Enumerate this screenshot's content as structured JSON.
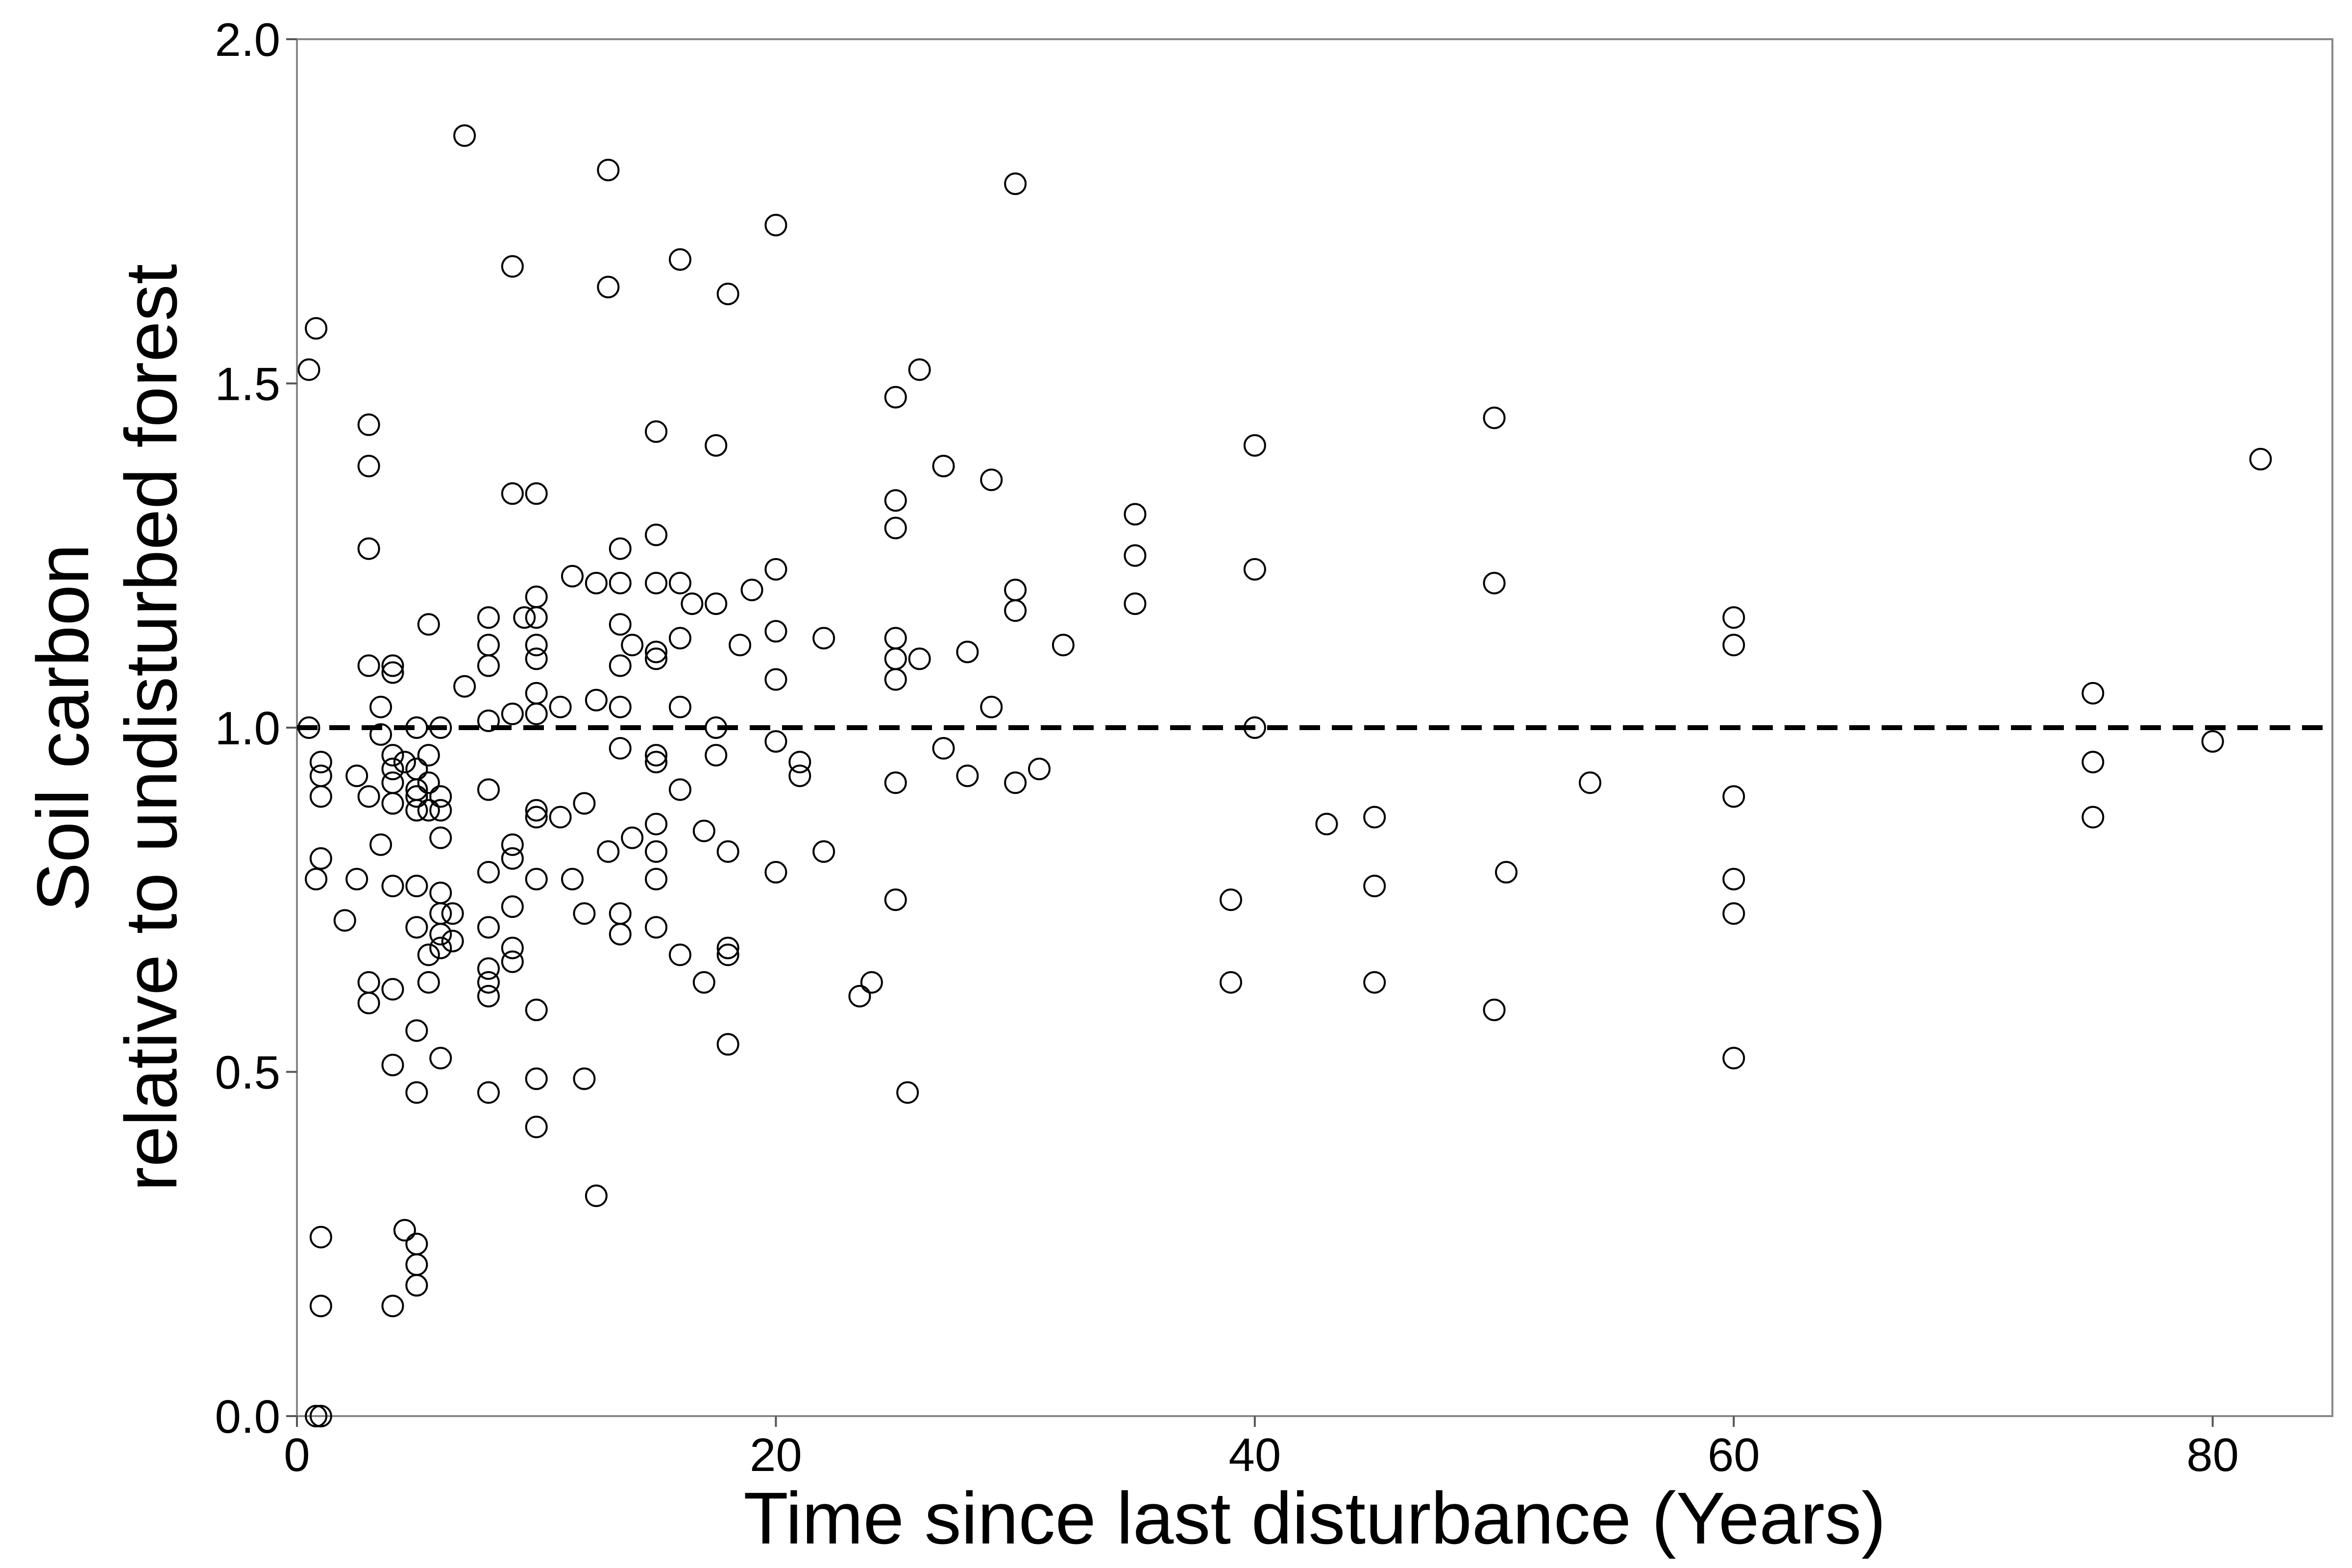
{
  "chart_data": {
    "type": "scatter",
    "title": "",
    "xlabel": "Time since last disturbance (Years)",
    "ylabel_lines": [
      "Soil carbon",
      "relative to undisturbed forest"
    ],
    "xlim": [
      0,
      85
    ],
    "ylim": [
      0,
      2.0
    ],
    "xticks": [
      0,
      20,
      40,
      60,
      80
    ],
    "xtick_labels": [
      "0",
      "20",
      "40",
      "60",
      "80"
    ],
    "yticks": [
      0.0,
      0.5,
      1.0,
      1.5,
      2.0
    ],
    "ytick_labels": [
      "0.0",
      "0.5",
      "1.0",
      "1.5",
      "2.0"
    ],
    "reference_line": {
      "y": 1.0,
      "style": "dashed"
    },
    "grid": false,
    "marker": "open-circle",
    "points": [
      [
        0.5,
        1.52
      ],
      [
        0.8,
        1.58
      ],
      [
        0.5,
        1.0
      ],
      [
        1,
        0.95
      ],
      [
        1,
        0.93
      ],
      [
        1,
        0.9
      ],
      [
        0.8,
        0.78
      ],
      [
        1,
        0.81
      ],
      [
        1,
        0.26
      ],
      [
        1,
        0.16
      ],
      [
        0.8,
        0.0
      ],
      [
        1,
        0.0
      ],
      [
        2,
        0.72
      ],
      [
        2.5,
        0.93
      ],
      [
        2.5,
        0.78
      ],
      [
        3,
        1.44
      ],
      [
        3,
        1.38
      ],
      [
        3,
        1.26
      ],
      [
        3,
        1.09
      ],
      [
        3,
        0.9
      ],
      [
        3,
        0.63
      ],
      [
        3,
        0.6
      ],
      [
        3.5,
        1.03
      ],
      [
        3.5,
        0.99
      ],
      [
        3.5,
        0.83
      ],
      [
        4,
        1.09
      ],
      [
        4,
        1.08
      ],
      [
        4,
        0.96
      ],
      [
        4,
        0.94
      ],
      [
        4,
        0.92
      ],
      [
        4,
        0.89
      ],
      [
        4,
        0.77
      ],
      [
        4,
        0.62
      ],
      [
        4,
        0.51
      ],
      [
        4,
        0.16
      ],
      [
        4.5,
        0.95
      ],
      [
        4.5,
        0.27
      ],
      [
        5,
        1.0
      ],
      [
        5,
        0.94
      ],
      [
        5,
        0.91
      ],
      [
        5,
        0.9
      ],
      [
        5,
        0.88
      ],
      [
        5,
        0.77
      ],
      [
        5,
        0.71
      ],
      [
        5,
        0.56
      ],
      [
        5,
        0.47
      ],
      [
        5,
        0.25
      ],
      [
        5,
        0.22
      ],
      [
        5,
        0.19
      ],
      [
        5.5,
        1.15
      ],
      [
        5.5,
        0.96
      ],
      [
        5.5,
        0.92
      ],
      [
        5.5,
        0.88
      ],
      [
        5.5,
        0.67
      ],
      [
        5.5,
        0.63
      ],
      [
        6,
        1.0
      ],
      [
        6,
        0.9
      ],
      [
        6,
        0.88
      ],
      [
        6,
        0.84
      ],
      [
        6,
        0.76
      ],
      [
        6,
        0.73
      ],
      [
        6,
        0.7
      ],
      [
        6,
        0.68
      ],
      [
        6,
        0.52
      ],
      [
        6.5,
        0.73
      ],
      [
        6.5,
        0.69
      ],
      [
        7,
        1.86
      ],
      [
        7,
        1.06
      ],
      [
        8,
        1.16
      ],
      [
        8,
        1.12
      ],
      [
        8,
        1.09
      ],
      [
        8,
        1.01
      ],
      [
        8,
        0.91
      ],
      [
        8,
        0.79
      ],
      [
        8,
        0.71
      ],
      [
        8,
        0.65
      ],
      [
        8,
        0.63
      ],
      [
        8,
        0.61
      ],
      [
        8,
        0.47
      ],
      [
        9,
        1.67
      ],
      [
        9,
        1.34
      ],
      [
        9,
        1.02
      ],
      [
        9,
        0.83
      ],
      [
        9,
        0.81
      ],
      [
        9,
        0.74
      ],
      [
        9,
        0.68
      ],
      [
        9,
        0.66
      ],
      [
        9.5,
        1.16
      ],
      [
        10,
        1.34
      ],
      [
        10,
        1.19
      ],
      [
        10,
        1.16
      ],
      [
        10,
        1.12
      ],
      [
        10,
        1.1
      ],
      [
        10,
        1.05
      ],
      [
        10,
        1.02
      ],
      [
        10,
        0.88
      ],
      [
        10,
        0.87
      ],
      [
        10,
        0.78
      ],
      [
        10,
        0.59
      ],
      [
        10,
        0.49
      ],
      [
        10,
        0.42
      ],
      [
        11,
        1.03
      ],
      [
        11,
        0.87
      ],
      [
        11.5,
        1.22
      ],
      [
        11.5,
        0.78
      ],
      [
        12,
        0.89
      ],
      [
        12,
        0.73
      ],
      [
        12,
        0.49
      ],
      [
        12.5,
        1.21
      ],
      [
        12.5,
        1.04
      ],
      [
        12.5,
        0.32
      ],
      [
        13,
        1.81
      ],
      [
        13,
        1.64
      ],
      [
        13,
        0.82
      ],
      [
        13.5,
        1.26
      ],
      [
        13.5,
        1.21
      ],
      [
        13.5,
        1.15
      ],
      [
        13.5,
        1.09
      ],
      [
        13.5,
        1.03
      ],
      [
        13.5,
        0.97
      ],
      [
        13.5,
        0.73
      ],
      [
        13.5,
        0.7
      ],
      [
        14,
        1.12
      ],
      [
        14,
        0.84
      ],
      [
        15,
        1.43
      ],
      [
        15,
        1.28
      ],
      [
        15,
        1.21
      ],
      [
        15,
        1.11
      ],
      [
        15,
        1.1
      ],
      [
        15,
        0.96
      ],
      [
        15,
        0.95
      ],
      [
        15,
        0.86
      ],
      [
        15,
        0.82
      ],
      [
        15,
        0.78
      ],
      [
        15,
        0.71
      ],
      [
        16,
        1.68
      ],
      [
        16,
        1.21
      ],
      [
        16,
        1.13
      ],
      [
        16,
        1.03
      ],
      [
        16,
        0.91
      ],
      [
        16,
        0.67
      ],
      [
        16.5,
        1.18
      ],
      [
        17,
        0.85
      ],
      [
        17,
        0.63
      ],
      [
        17.5,
        1.41
      ],
      [
        17.5,
        1.18
      ],
      [
        17.5,
        1.0
      ],
      [
        17.5,
        0.96
      ],
      [
        18,
        1.63
      ],
      [
        18,
        0.82
      ],
      [
        18,
        0.68
      ],
      [
        18,
        0.67
      ],
      [
        18,
        0.54
      ],
      [
        18.5,
        1.12
      ],
      [
        19,
        1.2
      ],
      [
        20,
        1.73
      ],
      [
        20,
        1.23
      ],
      [
        20,
        1.14
      ],
      [
        20,
        1.07
      ],
      [
        20,
        0.98
      ],
      [
        20,
        0.79
      ],
      [
        21,
        0.95
      ],
      [
        21,
        0.93
      ],
      [
        22,
        1.13
      ],
      [
        22,
        0.82
      ],
      [
        23.5,
        0.61
      ],
      [
        24,
        0.63
      ],
      [
        25,
        1.48
      ],
      [
        25,
        1.33
      ],
      [
        25,
        1.29
      ],
      [
        25,
        1.13
      ],
      [
        25,
        1.1
      ],
      [
        25,
        1.07
      ],
      [
        25,
        0.92
      ],
      [
        25,
        0.75
      ],
      [
        25.5,
        0.47
      ],
      [
        26,
        1.52
      ],
      [
        26,
        1.1
      ],
      [
        27,
        1.38
      ],
      [
        27,
        0.97
      ],
      [
        28,
        1.11
      ],
      [
        28,
        0.93
      ],
      [
        29,
        1.36
      ],
      [
        29,
        1.03
      ],
      [
        30,
        1.79
      ],
      [
        30,
        1.2
      ],
      [
        30,
        1.17
      ],
      [
        30,
        0.92
      ],
      [
        31,
        0.94
      ],
      [
        32,
        1.12
      ],
      [
        35,
        1.31
      ],
      [
        35,
        1.25
      ],
      [
        35,
        1.18
      ],
      [
        39,
        0.75
      ],
      [
        39,
        0.63
      ],
      [
        40,
        1.41
      ],
      [
        40,
        1.23
      ],
      [
        40,
        1.0
      ],
      [
        43,
        0.86
      ],
      [
        45,
        0.87
      ],
      [
        45,
        0.77
      ],
      [
        45,
        0.63
      ],
      [
        50,
        1.45
      ],
      [
        50,
        1.21
      ],
      [
        50,
        0.59
      ],
      [
        50.5,
        0.79
      ],
      [
        54,
        0.92
      ],
      [
        60,
        1.16
      ],
      [
        60,
        1.12
      ],
      [
        60,
        0.9
      ],
      [
        60,
        0.78
      ],
      [
        60,
        0.73
      ],
      [
        60,
        0.52
      ],
      [
        75,
        1.05
      ],
      [
        75,
        0.95
      ],
      [
        75,
        0.87
      ],
      [
        80,
        0.98
      ],
      [
        82,
        1.39
      ]
    ]
  }
}
